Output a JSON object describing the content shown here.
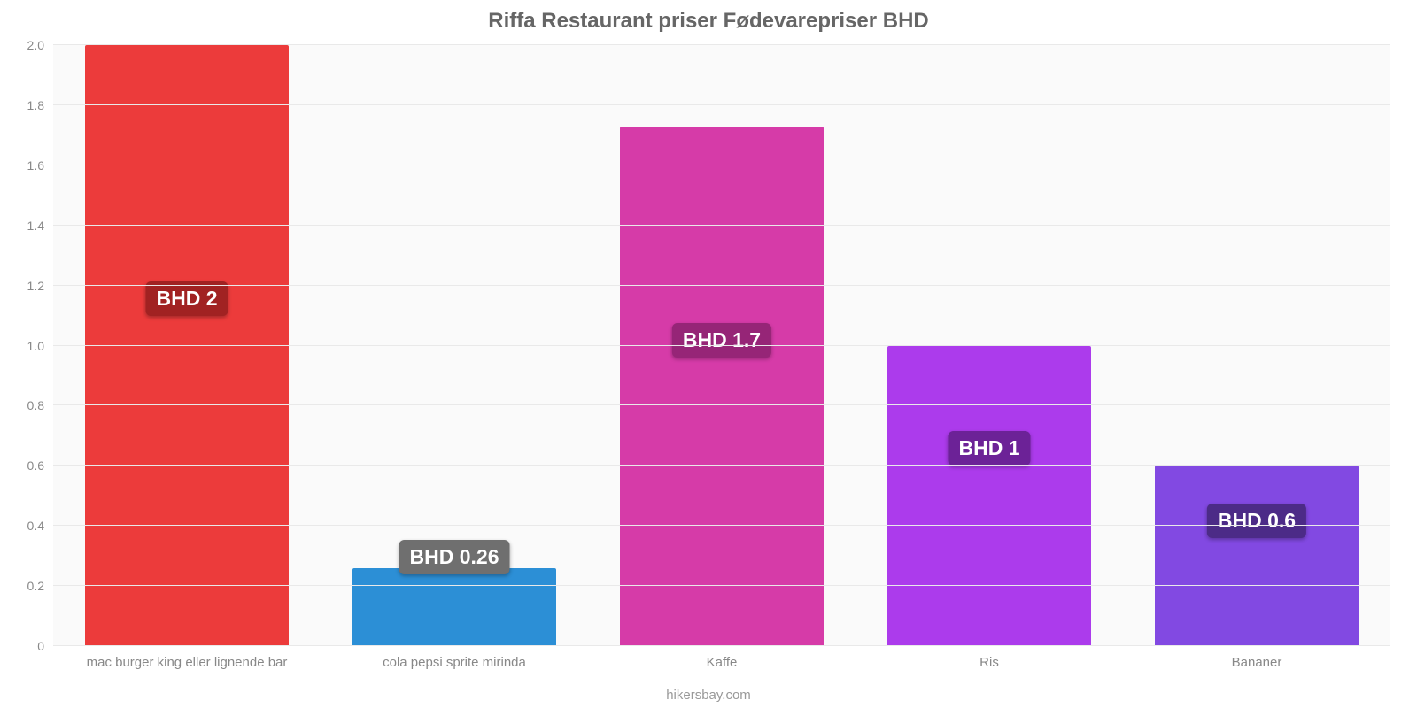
{
  "chart": {
    "type": "bar",
    "title": "Riffa Restaurant priser Fødevarepriser BHD",
    "title_fontsize": 24,
    "title_color": "#666666",
    "background_color": "#fafafa",
    "grid_color": "#e9e9e9",
    "axis_label_color": "#888888",
    "axis_label_fontsize": 14,
    "ylim": [
      0,
      2.0
    ],
    "ytick_step": 0.2,
    "yticks": [
      "0",
      "0.2",
      "0.4",
      "0.6",
      "0.8",
      "1.0",
      "1.2",
      "1.4",
      "1.6",
      "1.8",
      "2.0"
    ],
    "bar_width_pct": 76,
    "value_label_fontsize": 23,
    "value_label_text_color": "#ffffff",
    "value_label_radius": 6,
    "categories": [
      {
        "label": "mac burger king eller lignende bar",
        "value": 2.0,
        "value_label": "BHD 2",
        "bar_color": "#ec3b3b",
        "label_bg": "#a12222",
        "label_offset_pct": 55
      },
      {
        "label": "cola pepsi sprite mirinda",
        "value": 0.26,
        "value_label": "BHD 0.26",
        "bar_color": "#2c8fd6",
        "label_bg": "#6f6f6f",
        "label_offset_pct": 12
      },
      {
        "label": "Kaffe",
        "value": 1.73,
        "value_label": "BHD 1.7",
        "bar_color": "#d63ba8",
        "label_bg": "#962577",
        "label_offset_pct": 48
      },
      {
        "label": "Ris",
        "value": 1.0,
        "value_label": "BHD 1",
        "bar_color": "#ac3bec",
        "label_bg": "#6c2297",
        "label_offset_pct": 30
      },
      {
        "label": "Bananer",
        "value": 0.6,
        "value_label": "BHD 0.6",
        "bar_color": "#8249e2",
        "label_bg": "#4c2b87",
        "label_offset_pct": 18
      }
    ],
    "source_text": "hikersbay.com",
    "source_color": "#999999",
    "source_fontsize": 15
  }
}
